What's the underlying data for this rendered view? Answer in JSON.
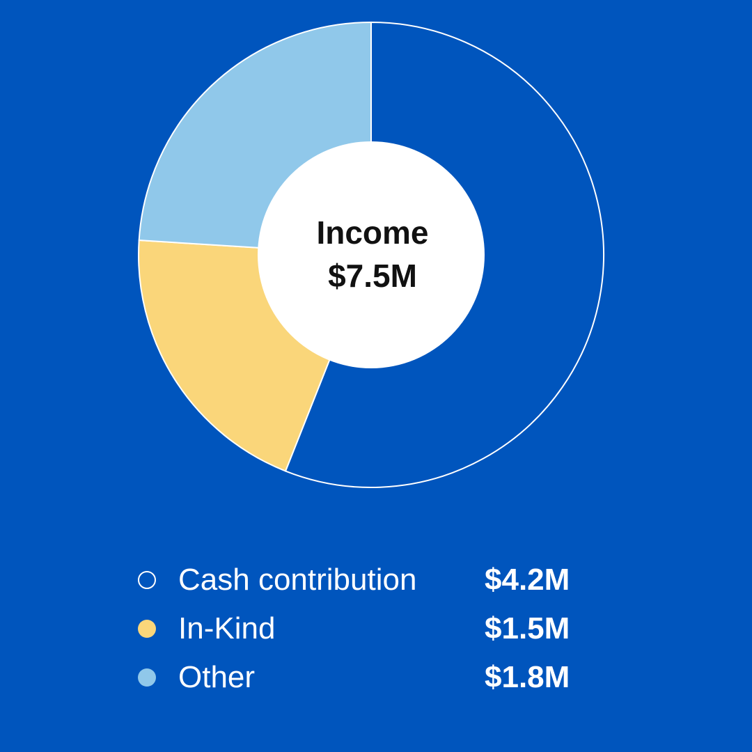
{
  "chart_data": {
    "type": "pie",
    "center_label": {
      "line1": "Income",
      "line2": "$7.5M"
    },
    "total": 7.5,
    "unit": "$M",
    "slices": [
      {
        "label": "Cash contribution",
        "value": 4.2,
        "value_label": "$4.2M",
        "color": "#0055BD",
        "swatch_style": "outline"
      },
      {
        "label": "In-Kind",
        "value": 1.5,
        "value_label": "$1.5M",
        "color": "#FAD67A",
        "swatch_style": "filled"
      },
      {
        "label": "Other",
        "value": 1.8,
        "value_label": "$1.8M",
        "color": "#90C8EA",
        "swatch_style": "filled"
      }
    ],
    "legend_position": "bottom"
  },
  "colors": {
    "background": "#0055BD",
    "slice_stroke": "#ffffff",
    "center_fill": "#ffffff",
    "center_text": "#111111",
    "legend_text": "#ffffff"
  }
}
